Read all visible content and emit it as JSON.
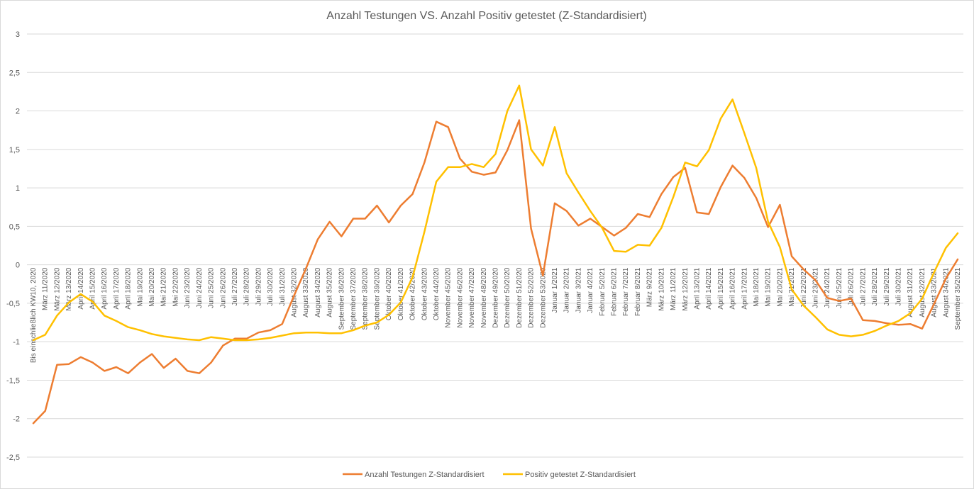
{
  "chart_data": {
    "type": "line",
    "title": "Anzahl Testungen VS. Anzahl Positiv getestet (Z-Standardisiert)",
    "xlabel": "",
    "ylabel": "",
    "ylim": [
      -2.5,
      3
    ],
    "yticks": [
      3,
      2.5,
      2,
      1.5,
      1,
      0.5,
      0,
      -0.5,
      -1,
      -1.5,
      -2,
      -2.5
    ],
    "ytick_labels": [
      "3",
      "2,5",
      "2",
      "1,5",
      "1",
      "0,5",
      "0",
      "-0,5",
      "-1",
      "-1,5",
      "-2",
      "-2,5"
    ],
    "grid": true,
    "legend_position": "bottom",
    "categories": [
      "Bis einschließlich KW10, 2020",
      "März 11/2020",
      "März 12/2020",
      "März 13/2020",
      "April 14/2020",
      "April 15/2020",
      "April 16/2020",
      "April 17/2020",
      "April 18/2020",
      "Mai 19/2020",
      "Mai 20/2020",
      "Mai 21/2020",
      "Mai 22/2020",
      "Juni 23/2020",
      "Juni 24/2020",
      "Juni 25/2020",
      "Juni 26/2020",
      "Juli 27/2020",
      "Juli 28/2020",
      "Juli 29/2020",
      "Juli 30/2020",
      "Juli 31/2020",
      "August 32/2020",
      "August 33/2020",
      "August 34/2020",
      "August 35/2020",
      "September 36/2020",
      "September 37/2020",
      "September 38/2020",
      "September 39/2020",
      "Oktober 40/2020",
      "Oktober 41/2020",
      "Oktober 42/2020",
      "Oktober 43/2020",
      "Oktober 44/2020",
      "November 45/2020",
      "November 46/2020",
      "November 47/2020",
      "November 48/2020",
      "Dezember 49/2020",
      "Dezember 50/2020",
      "Dezember 51/2020",
      "Dezember 52/2020",
      "Dezember 53/2020",
      "Januar 1/2021",
      "Januar 2/2021",
      "Januar 3/2021",
      "Januar 4/2021",
      "Februar 5/2021",
      "Februar 6/2021",
      "Februar 7/2021",
      "Februar 8/2021",
      "März 9/2021",
      "März 10/2021",
      "März 11/2021",
      "März 12/2021",
      "April 13/2021",
      "April 14/2021",
      "April 15/2021",
      "April 16/2021",
      "April 17/2021",
      "Mai 18/2021",
      "Mai 19/2021",
      "Mai 20/2021",
      "Mai 21/2021",
      "Juni 22/2021",
      "Juni 23/2021",
      "Juni 24/2021",
      "Juni 25/2021",
      "Juli 26/2021",
      "Juli 27/2021",
      "Juli 28/2021",
      "Juli 29/2021",
      "Juli 30/2021",
      "August 31/2021",
      "August 32/2021",
      "August 33/2021",
      "August 34/2021",
      "September 35/2021"
    ],
    "series": [
      {
        "name": "Anzahl Testungen Z-Standardisiert",
        "color": "#ED7D31",
        "values": [
          -2.06,
          -1.9,
          -1.3,
          -1.29,
          -1.2,
          -1.27,
          -1.38,
          -1.33,
          -1.41,
          -1.27,
          -1.16,
          -1.34,
          -1.22,
          -1.38,
          -1.41,
          -1.27,
          -1.05,
          -0.96,
          -0.96,
          -0.88,
          -0.85,
          -0.77,
          -0.4,
          -0.05,
          0.33,
          0.56,
          0.37,
          0.6,
          0.6,
          0.77,
          0.55,
          0.77,
          0.92,
          1.33,
          1.86,
          1.79,
          1.38,
          1.21,
          1.17,
          1.2,
          1.49,
          1.88,
          0.47,
          -0.14,
          0.8,
          0.7,
          0.51,
          0.6,
          0.49,
          0.38,
          0.48,
          0.66,
          0.62,
          0.92,
          1.14,
          1.26,
          0.68,
          0.66,
          1.01,
          1.29,
          1.13,
          0.87,
          0.49,
          0.78,
          0.11,
          -0.06,
          -0.2,
          -0.43,
          -0.47,
          -0.44,
          -0.72,
          -0.73,
          -0.76,
          -0.78,
          -0.77,
          -0.83,
          -0.51,
          -0.18,
          0.07
        ]
      },
      {
        "name": "Positiv getestet Z-Standardisiert",
        "color": "#FFC000",
        "values": [
          -0.98,
          -0.91,
          -0.66,
          -0.49,
          -0.38,
          -0.48,
          -0.66,
          -0.73,
          -0.81,
          -0.85,
          -0.9,
          -0.93,
          -0.95,
          -0.97,
          -0.98,
          -0.94,
          -0.96,
          -0.98,
          -0.98,
          -0.97,
          -0.95,
          -0.92,
          -0.89,
          -0.88,
          -0.88,
          -0.89,
          -0.89,
          -0.85,
          -0.79,
          -0.75,
          -0.65,
          -0.49,
          -0.16,
          0.43,
          1.08,
          1.27,
          1.27,
          1.31,
          1.27,
          1.44,
          2.0,
          2.33,
          1.5,
          1.29,
          1.79,
          1.19,
          0.94,
          0.7,
          0.48,
          0.18,
          0.17,
          0.26,
          0.25,
          0.48,
          0.88,
          1.33,
          1.28,
          1.49,
          1.9,
          2.15,
          1.71,
          1.26,
          0.56,
          0.23,
          -0.32,
          -0.53,
          -0.68,
          -0.84,
          -0.91,
          -0.93,
          -0.91,
          -0.86,
          -0.79,
          -0.73,
          -0.63,
          -0.44,
          -0.1,
          0.22,
          0.41
        ]
      }
    ]
  }
}
